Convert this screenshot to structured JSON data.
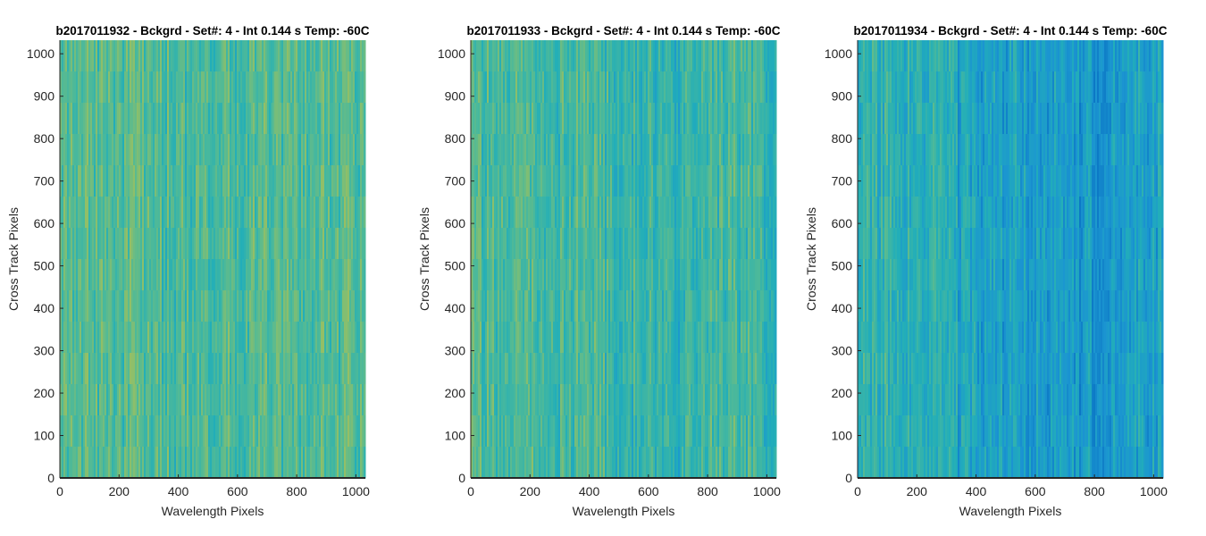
{
  "chart_data": [
    {
      "type": "heatmap",
      "title": "b2017011932 - Bckgrd - Set#: 4 - Int 0.144 s Temp: -60C",
      "xlabel": "Wavelength Pixels",
      "ylabel": "Cross Track Pixels",
      "xlim": [
        0,
        1032
      ],
      "ylim": [
        0,
        1032
      ],
      "xticks": [
        0,
        200,
        400,
        600,
        800,
        1000
      ],
      "yticks": [
        0,
        100,
        200,
        300,
        400,
        500,
        600,
        700,
        800,
        900,
        1000
      ],
      "colormap": "parula",
      "color_stops": [
        "#0a75c4",
        "#1b95d1",
        "#22aeb9",
        "#4cb99a",
        "#8dbf6a",
        "#b7bd50"
      ],
      "level_profile": {
        "x": [
          0,
          200,
          400,
          600,
          800,
          1032
        ],
        "level": [
          0.62,
          0.6,
          0.58,
          0.6,
          0.62,
          0.6
        ]
      },
      "grid": false
    },
    {
      "type": "heatmap",
      "title": "b2017011933 - Bckgrd - Set#: 4 - Int 0.144 s Temp: -60C",
      "xlabel": "Wavelength Pixels",
      "ylabel": "Cross Track Pixels",
      "xlim": [
        0,
        1032
      ],
      "ylim": [
        0,
        1032
      ],
      "xticks": [
        0,
        200,
        400,
        600,
        800,
        1000
      ],
      "yticks": [
        0,
        100,
        200,
        300,
        400,
        500,
        600,
        700,
        800,
        900,
        1000
      ],
      "colormap": "parula",
      "color_stops": [
        "#0a75c4",
        "#1b95d1",
        "#22aeb9",
        "#4cb99a",
        "#8dbf6a",
        "#b7bd50"
      ],
      "level_profile": {
        "x": [
          0,
          200,
          400,
          600,
          700,
          800,
          1032
        ],
        "level": [
          0.58,
          0.56,
          0.55,
          0.5,
          0.48,
          0.55,
          0.52
        ]
      },
      "grid": false
    },
    {
      "type": "heatmap",
      "title": "b2017011934 - Bckgrd - Set#: 4 - Int 0.144 s Temp: -60C",
      "xlabel": "Wavelength Pixels",
      "ylabel": "Cross Track Pixels",
      "xlim": [
        0,
        1032
      ],
      "ylim": [
        0,
        1032
      ],
      "xticks": [
        0,
        200,
        400,
        600,
        800,
        1000
      ],
      "yticks": [
        0,
        100,
        200,
        300,
        400,
        500,
        600,
        700,
        800,
        900,
        1000
      ],
      "colormap": "parula",
      "color_stops": [
        "#0a75c4",
        "#1b95d1",
        "#22aeb9",
        "#4cb99a",
        "#8dbf6a",
        "#b7bd50"
      ],
      "level_profile": {
        "x": [
          0,
          300,
          340,
          500,
          700,
          780,
          900,
          1032
        ],
        "level": [
          0.47,
          0.45,
          0.33,
          0.3,
          0.27,
          0.22,
          0.3,
          0.32
        ]
      },
      "grid": false
    }
  ]
}
